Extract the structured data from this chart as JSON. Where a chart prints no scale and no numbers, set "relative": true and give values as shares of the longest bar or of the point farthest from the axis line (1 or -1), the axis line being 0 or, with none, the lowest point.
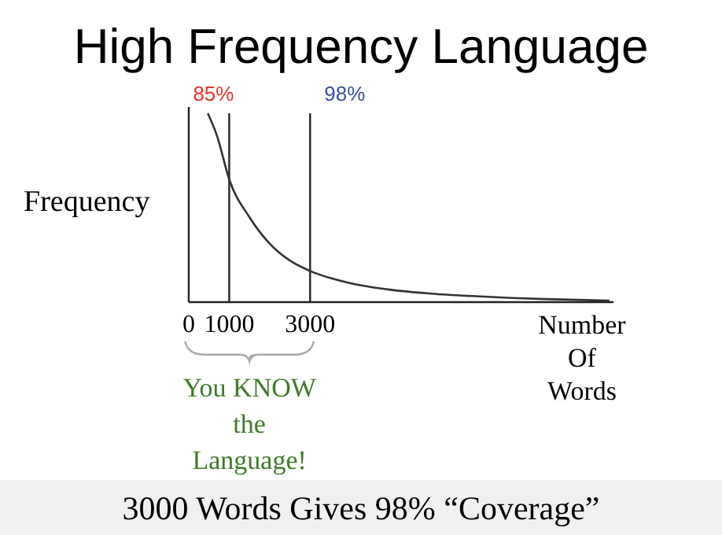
{
  "chart_data": {
    "type": "line",
    "title": "High Frequency Language",
    "ylabel": "Frequency",
    "xlabel": "Number Of Words",
    "relative": true,
    "xlim": [
      0,
      10500
    ],
    "xticks": [
      0,
      1000,
      3000
    ],
    "series": [
      {
        "color": "#333333",
        "x": [
          470,
          700,
          1000,
          1500,
          2000,
          2500,
          3000,
          4000,
          5000,
          6000,
          7000,
          8000,
          9000,
          10400
        ],
        "values": [
          1,
          0.88,
          0.65,
          0.45,
          0.31,
          0.22,
          0.165,
          0.1,
          0.065,
          0.045,
          0.032,
          0.022,
          0.015,
          0.008
        ]
      }
    ],
    "ref_lines": [
      {
        "axis": "x",
        "value": 1000
      },
      {
        "axis": "x",
        "value": 3000
      }
    ],
    "annotations": [
      "You KNOW the Language!",
      "3000 Words Gives 98% “Coverage”",
      {
        "text": "85%",
        "x": 1000,
        "y": 1
      },
      {
        "text": "98%",
        "x": 3000,
        "y": 1
      }
    ],
    "marker": "none",
    "line_style": "solid"
  }
}
